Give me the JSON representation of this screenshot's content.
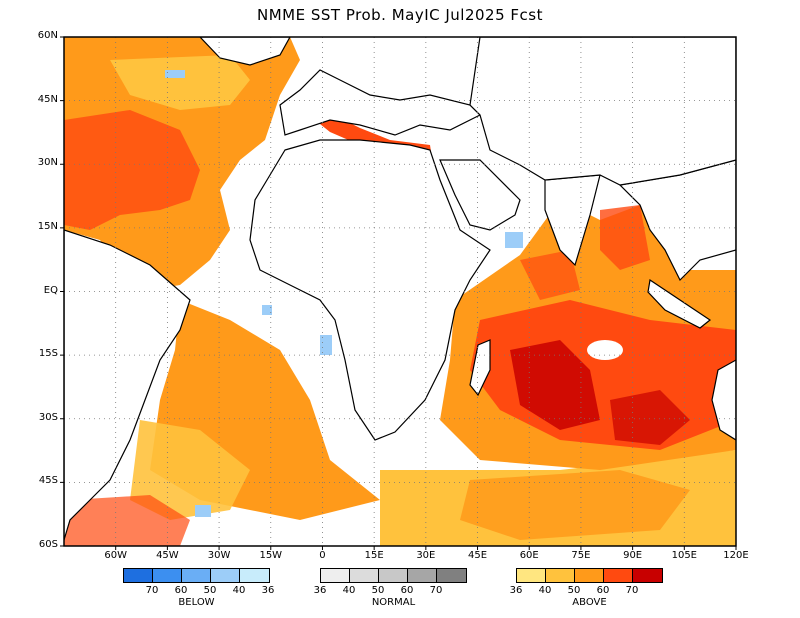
{
  "title": "NMME SST Prob. MayIC  Jul2025 Fcst",
  "y_labels": [
    "60N",
    "45N",
    "30N",
    "15N",
    "EQ",
    "15S",
    "30S",
    "45S",
    "60S"
  ],
  "x_labels": [
    "60W",
    "45W",
    "30W",
    "15W",
    "0",
    "15E",
    "30E",
    "45E",
    "60E",
    "75E",
    "90E",
    "105E",
    "120E"
  ],
  "legend": {
    "below": {
      "label": "BELOW",
      "colors": [
        "#1e6fe0",
        "#3c8ff0",
        "#6aaef5",
        "#9ccdf8",
        "#c8ecfb"
      ],
      "ticks": [
        "70",
        "60",
        "50",
        "40",
        "36"
      ]
    },
    "normal": {
      "label": "NORMAL",
      "colors": [
        "#eeeeee",
        "#dcdcdc",
        "#c8c8c8",
        "#a6a6a6",
        "#808080"
      ],
      "ticks": [
        "36",
        "40",
        "50",
        "60",
        "70"
      ]
    },
    "above": {
      "label": "ABOVE",
      "colors": [
        "#ffe680",
        "#ffc23d",
        "#ff9a1a",
        "#ff4a10",
        "#c80000"
      ],
      "ticks": [
        "36",
        "40",
        "50",
        "60",
        "70"
      ]
    }
  }
}
